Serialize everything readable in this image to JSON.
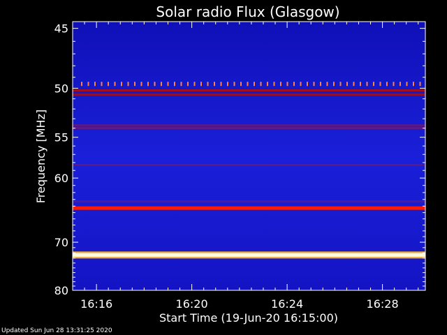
{
  "chart_data": {
    "type": "heatmap",
    "title": "Solar radio Flux (Glasgow)",
    "ylabel": "Frequency [MHz]",
    "xlabel": "Start Time (19-Jun-20 16:15:00)",
    "x_ticks": [
      "16:16",
      "16:20",
      "16:24",
      "16:28"
    ],
    "x_tick_minutes": [
      1,
      5,
      9,
      13
    ],
    "xlim_minutes": [
      0,
      14.8
    ],
    "y_ticks": [
      45,
      50,
      55,
      60,
      70,
      80
    ],
    "ylim": [
      44.5,
      80
    ],
    "y_scale": "reciprocal",
    "background_color": "#1a1ad0",
    "emission_bands": [
      {
        "freq_mhz": 64.3,
        "level": "red",
        "color": "#ff1a00"
      },
      {
        "freq_mhz": 72.4,
        "level": "saturated",
        "color": "#fffbe0"
      },
      {
        "freq_mhz": 50.2,
        "level": "dark red",
        "color": "#a01020"
      },
      {
        "freq_mhz": 50.6,
        "level": "dark red",
        "color": "#901030"
      },
      {
        "freq_mhz": 53.7,
        "level": "purple",
        "color": "#5a1a8a"
      },
      {
        "freq_mhz": 54.0,
        "level": "purple",
        "color": "#601a80"
      },
      {
        "freq_mhz": 58.3,
        "level": "purple",
        "color": "#5a1a8a"
      },
      {
        "freq_mhz": 63.3,
        "level": "purple",
        "color": "#4a1aa0"
      }
    ],
    "pulse_freq_mhz": 49.6,
    "pulse_color": "#ff8040"
  },
  "footer": "Updated Sun Jun 28 13:31:25 2020"
}
